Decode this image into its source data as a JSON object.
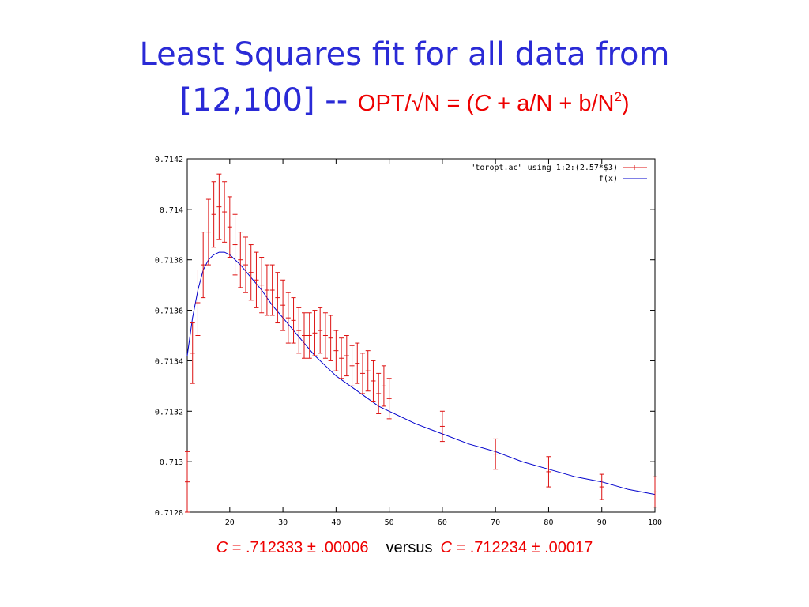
{
  "slide": {
    "title_line1": "Least Squares fit for all data from",
    "title_line2_prefix": "[12,100]  --",
    "formula": {
      "p1": "OPT/√N = (",
      "c": "C",
      "p2": " + a/N + b/N",
      "sup": "2",
      "p3": ")"
    },
    "bottom": {
      "c1_label": "C",
      "c1_text": " = .712333 ± .00006",
      "versus": "versus",
      "c2_label": "C",
      "c2_text": " = .712234 ± .00017"
    }
  },
  "colors": {
    "title": "#2a2ad6",
    "formula": "#ee0000",
    "points": "#dd1111",
    "fit": "#0000cc"
  },
  "chart_data": {
    "type": "scatter",
    "xlim": [
      12,
      100
    ],
    "ylim": [
      0.7128,
      0.7142
    ],
    "x_ticks": [
      20,
      30,
      40,
      50,
      60,
      70,
      80,
      90,
      100
    ],
    "y_ticks": [
      0.7128,
      0.713,
      0.7132,
      0.7134,
      0.7136,
      0.7138,
      0.714,
      0.7142
    ],
    "y_tick_labels": [
      "0.7128",
      "0.713",
      "0.7132",
      "0.7134",
      "0.7136",
      "0.7138",
      "0.714",
      "0.7142"
    ],
    "grid": false,
    "legend_position": "top-right",
    "series": [
      {
        "name": "\"toropt.ac\" using 1:2:(2.57*$3)",
        "style": "points-with-errorbars",
        "x": [
          12,
          13,
          14,
          15,
          16,
          17,
          18,
          19,
          20,
          21,
          22,
          23,
          24,
          25,
          26,
          27,
          28,
          29,
          30,
          31,
          32,
          33,
          34,
          35,
          36,
          37,
          38,
          39,
          40,
          41,
          42,
          43,
          44,
          45,
          46,
          47,
          48,
          49,
          50,
          60,
          70,
          80,
          90,
          100
        ],
        "y": [
          0.71292,
          0.71343,
          0.71363,
          0.71378,
          0.71391,
          0.71398,
          0.71401,
          0.71399,
          0.71393,
          0.71386,
          0.7138,
          0.71378,
          0.71375,
          0.71372,
          0.7137,
          0.71368,
          0.71368,
          0.71365,
          0.71362,
          0.71357,
          0.71356,
          0.71352,
          0.7135,
          0.7135,
          0.71351,
          0.71352,
          0.7135,
          0.71349,
          0.71344,
          0.71341,
          0.71342,
          0.71338,
          0.71339,
          0.71335,
          0.71336,
          0.71332,
          0.71327,
          0.7133,
          0.71325,
          0.71314,
          0.71303,
          0.71296,
          0.7129,
          0.71288
        ],
        "err": [
          0.00012,
          0.00012,
          0.00013,
          0.00013,
          0.00013,
          0.00013,
          0.00013,
          0.00012,
          0.00012,
          0.00012,
          0.00011,
          0.00011,
          0.00011,
          0.00011,
          0.00011,
          0.0001,
          0.0001,
          0.0001,
          0.0001,
          0.0001,
          9e-05,
          9e-05,
          9e-05,
          9e-05,
          9e-05,
          9e-05,
          9e-05,
          9e-05,
          8e-05,
          8e-05,
          8e-05,
          8e-05,
          8e-05,
          8e-05,
          8e-05,
          8e-05,
          8e-05,
          8e-05,
          8e-05,
          6e-05,
          6e-05,
          6e-05,
          5e-05,
          6e-05
        ]
      },
      {
        "name": "f(x)",
        "style": "line",
        "x": [
          12,
          13,
          14,
          15,
          16,
          17,
          18,
          19,
          20,
          22,
          24,
          26,
          28,
          30,
          32,
          34,
          36,
          38,
          40,
          42,
          44,
          46,
          48,
          50,
          55,
          60,
          65,
          70,
          75,
          80,
          85,
          90,
          95,
          100
        ],
        "y": [
          0.71342,
          0.71357,
          0.71368,
          0.71376,
          0.7138,
          0.71382,
          0.71383,
          0.71383,
          0.71382,
          0.71378,
          0.71373,
          0.71368,
          0.71362,
          0.71357,
          0.71352,
          0.71347,
          0.71342,
          0.71338,
          0.71334,
          0.71331,
          0.71328,
          0.71325,
          0.71322,
          0.7132,
          0.71315,
          0.71311,
          0.71307,
          0.71304,
          0.713,
          0.71297,
          0.71294,
          0.71292,
          0.71289,
          0.71287
        ]
      }
    ]
  }
}
